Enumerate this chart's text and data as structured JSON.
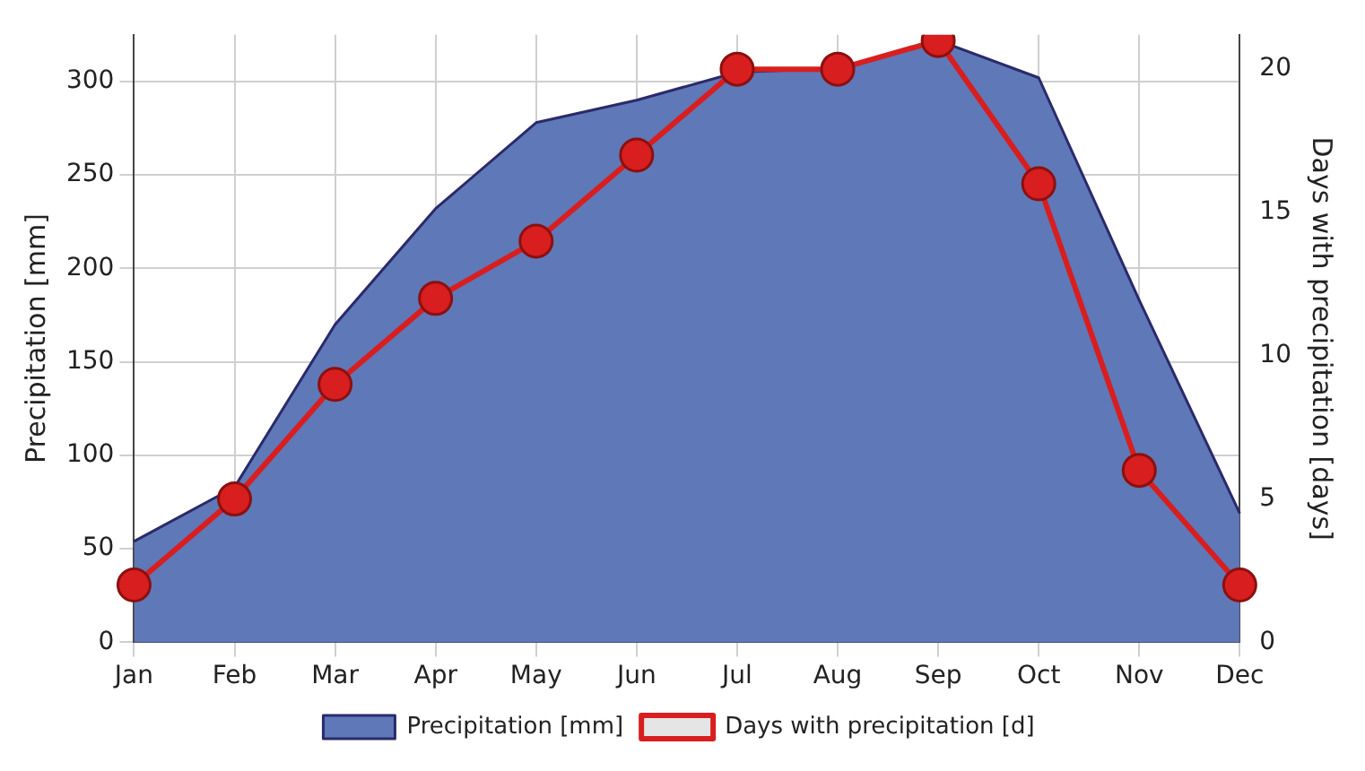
{
  "chart_data": {
    "type": "line",
    "categories": [
      "Jan",
      "Feb",
      "Mar",
      "Apr",
      "May",
      "Jun",
      "Jul",
      "Aug",
      "Sep",
      "Oct",
      "Nov",
      "Dec"
    ],
    "series": [
      {
        "name": "Precipitation [mm]",
        "type": "area",
        "color": "#5f78b8",
        "values": [
          54,
          83,
          170,
          232,
          278,
          290,
          305,
          307,
          322,
          302,
          183,
          69
        ]
      },
      {
        "name": "Days with precipitation [d]",
        "axis": "y2",
        "marker": "circle",
        "color": "#d81e1e",
        "values": [
          2,
          5,
          9,
          12,
          14,
          17,
          20,
          20,
          21,
          16,
          6,
          2
        ]
      }
    ],
    "ylabel": "Precipitation [mm]",
    "y2label": "Days with precipitation [days]",
    "ylim": [
      0,
      325
    ],
    "yticks": [
      0,
      50,
      100,
      150,
      200,
      250,
      300
    ],
    "y2lim": [
      0,
      21.2
    ],
    "y2ticks": [
      0,
      5,
      10,
      15,
      20
    ],
    "grid": true,
    "legend": "bottom"
  }
}
